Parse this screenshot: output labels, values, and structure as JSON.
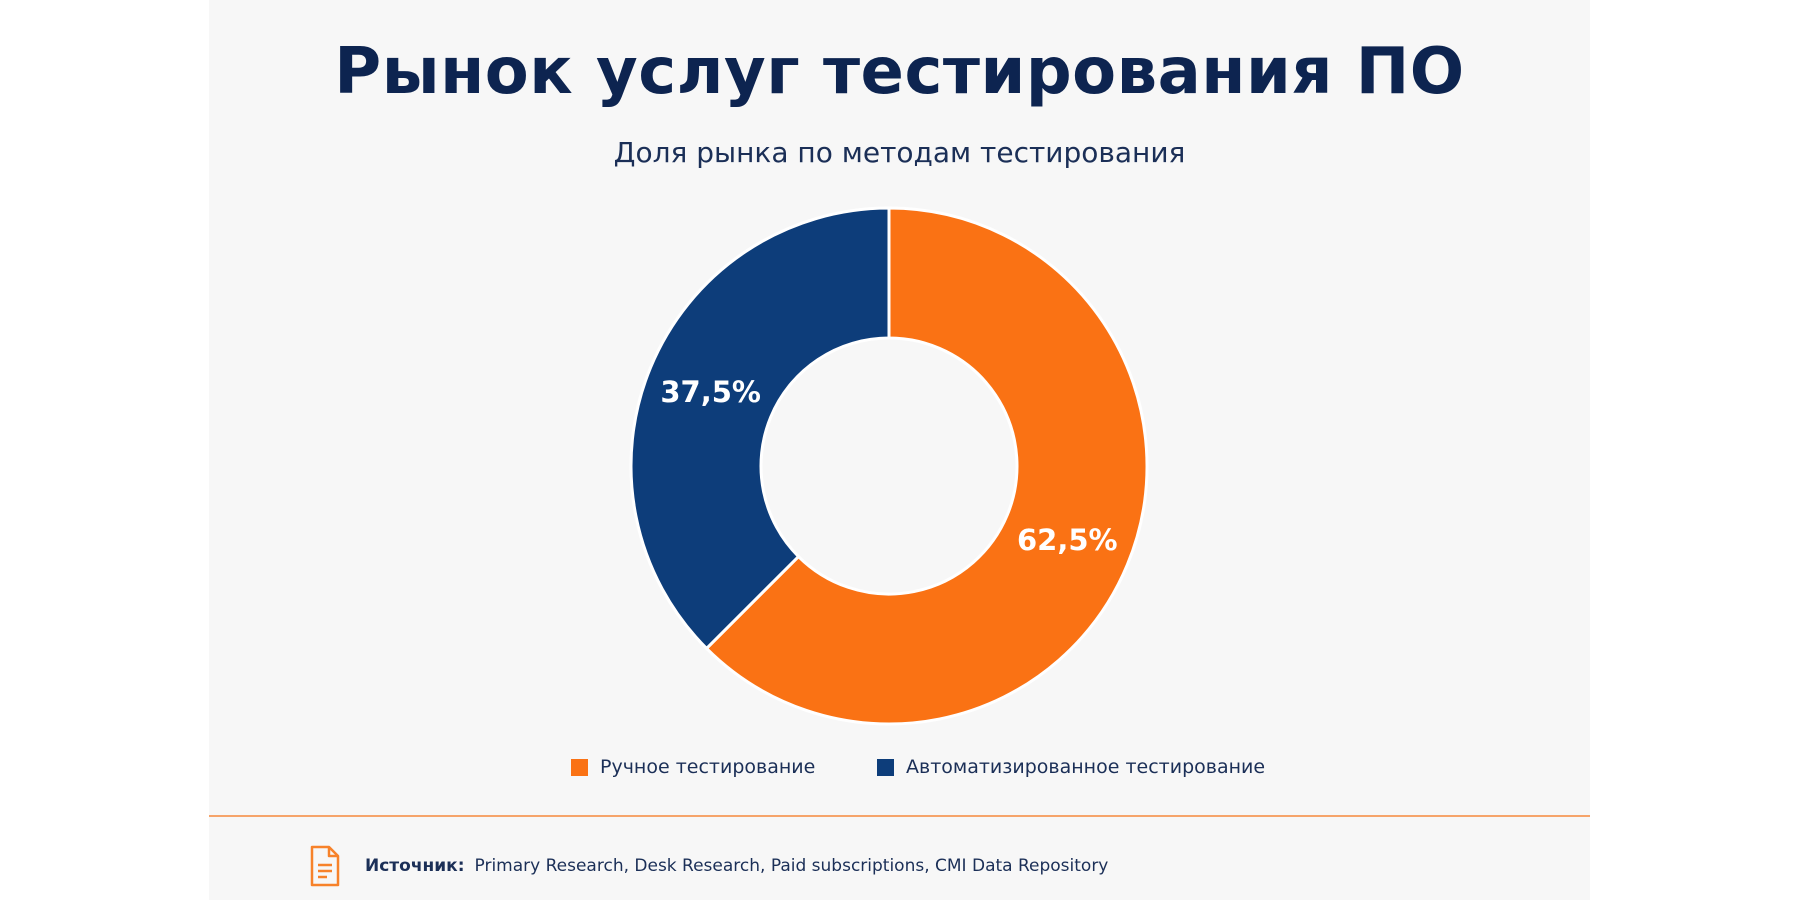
{
  "chart_data": {
    "type": "pie",
    "title": "Рынок услуг тестирования ПО",
    "subtitle": "Доля рынка по методам тестирования",
    "slices": [
      {
        "name": "Ручное тестирование",
        "value": 62.5,
        "label": "62,5%",
        "color": "#fa7214"
      },
      {
        "name": "Автоматизированное тестирование",
        "value": 37.5,
        "label": "37,5%",
        "color": "#0d3d7a"
      }
    ],
    "donut": true,
    "start": "12 o'clock",
    "direction": "clockwise",
    "legend": "bottom-center"
  },
  "legend": {
    "items": [
      {
        "label": "Ручное тестирование",
        "color": "#fa7214"
      },
      {
        "label": "Автоматизированное тестирование",
        "color": "#0d3d7a"
      }
    ]
  },
  "footer": {
    "source_label": "Источник:",
    "source_text": "Primary Research, Desk Research, Paid subscriptions, CMI Data Repository",
    "icon": "document-icon",
    "icon_color": "#f7822a"
  },
  "colors": {
    "title": "#0d2450",
    "text": "#1b2f57",
    "background": "#f7f7f7",
    "divider": "#f6a46a"
  }
}
